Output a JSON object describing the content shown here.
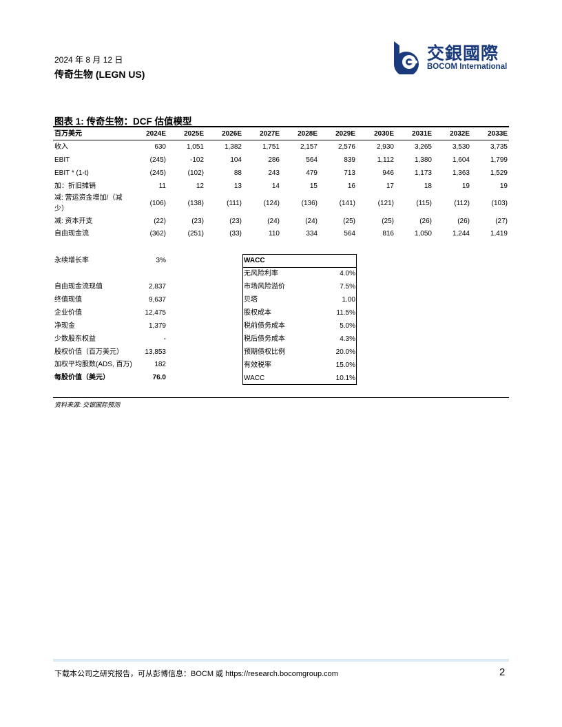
{
  "header": {
    "date": "2024 年 8 月 12 日",
    "company": "传奇生物 (LEGN US)",
    "logo_cn": "交銀國際",
    "logo_en": "BOCOM International",
    "brand_color": "#1a3a7c"
  },
  "figure": {
    "title": "图表 1: 传奇生物：DCF 估值模型"
  },
  "dcf_table": {
    "unit_label": "百万美元",
    "years": [
      "2024E",
      "2025E",
      "2026E",
      "2027E",
      "2028E",
      "2029E",
      "2030E",
      "2031E",
      "2032E",
      "2033E"
    ],
    "rows": [
      {
        "label": "收入",
        "values": [
          "630",
          "1,051",
          "1,382",
          "1,751",
          "2,157",
          "2,576",
          "2,930",
          "3,265",
          "3,530",
          "3,735"
        ]
      },
      {
        "label": "EBIT",
        "values": [
          "(245)",
          "-102",
          "104",
          "286",
          "564",
          "839",
          "1,112",
          "1,380",
          "1,604",
          "1,799"
        ]
      },
      {
        "label": "EBIT * (1-t)",
        "values": [
          "(245)",
          "(102)",
          "88",
          "243",
          "479",
          "713",
          "946",
          "1,173",
          "1,363",
          "1,529"
        ]
      },
      {
        "label": "加：折旧摊销",
        "values": [
          "11",
          "12",
          "13",
          "14",
          "15",
          "16",
          "17",
          "18",
          "19",
          "19"
        ]
      },
      {
        "label": "减: 营运资金增加/（减",
        "label2": "少）",
        "values": [
          "(106)",
          "(138)",
          "(111)",
          "(124)",
          "(136)",
          "(141)",
          "(121)",
          "(115)",
          "(112)",
          "(103)"
        ]
      },
      {
        "label": "减: 资本开支",
        "values": [
          "(22)",
          "(23)",
          "(23)",
          "(24)",
          "(24)",
          "(25)",
          "(25)",
          "(26)",
          "(26)",
          "(27)"
        ]
      },
      {
        "label": "自由现金流",
        "values": [
          "(362)",
          "(251)",
          "(33)",
          "110",
          "334",
          "564",
          "816",
          "1,050",
          "1,244",
          "1,419"
        ]
      }
    ]
  },
  "valuation": [
    {
      "label": "永续增长率",
      "value": "3%"
    },
    {
      "label": "自由现金流现值",
      "value": "2,837"
    },
    {
      "label": "终值现值",
      "value": "9,637"
    },
    {
      "label": "企业价值",
      "value": "12,475"
    },
    {
      "label": "净现金",
      "value": "1,379"
    },
    {
      "label": "少数股东权益",
      "value": "-"
    },
    {
      "label": "股权价值（百万美元）",
      "value": "13,853"
    },
    {
      "label": "加权平均股数(ADS, 百万)",
      "value": "182"
    },
    {
      "label": "每股价值（美元）",
      "value": "76.0",
      "bold": true
    }
  ],
  "wacc": {
    "title": "WACC",
    "rows": [
      {
        "label": "无风险利率",
        "value": "4.0%"
      },
      {
        "label": "市场风险溢价",
        "value": "7.5%"
      },
      {
        "label": "贝塔",
        "value": "1.00"
      },
      {
        "label": "股权成本",
        "value": "11.5%"
      },
      {
        "label": "税前债务成本",
        "value": "5.0%"
      },
      {
        "label": "税后债务成本",
        "value": "4.3%"
      },
      {
        "label": "预期债权比例",
        "value": "20.0%"
      },
      {
        "label": "有效税率",
        "value": "15.0%"
      },
      {
        "label": "WACC",
        "value": "10.1%"
      }
    ]
  },
  "source": "资料来源: 交银国际预测",
  "footer": {
    "text": "下载本公司之研究报告，可从彭博信息：BOCM 或 https://research.bocomgroup.com",
    "page": "2"
  }
}
